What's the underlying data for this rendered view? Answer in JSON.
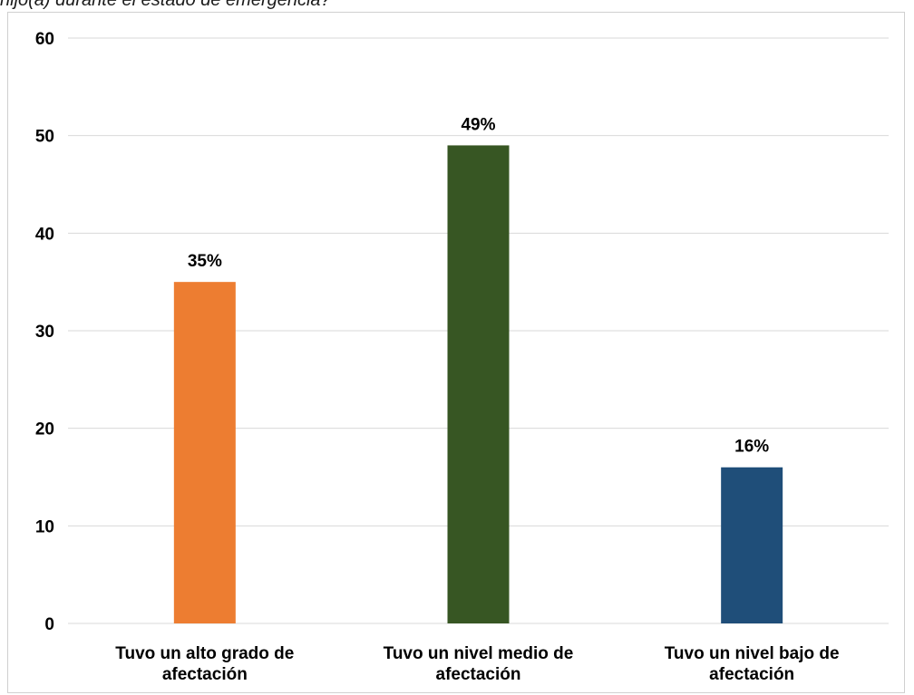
{
  "caption": "hijo(a) durante el estado de emergencia?",
  "chart_data": {
    "type": "bar",
    "categories": [
      [
        "Tuvo un alto grado de",
        "afectación"
      ],
      [
        "Tuvo un nivel medio de",
        "afectación"
      ],
      [
        "Tuvo un nivel bajo de",
        "afectación"
      ]
    ],
    "values": [
      35,
      49,
      16
    ],
    "data_labels": [
      "35%",
      "49%",
      "16%"
    ],
    "colors": [
      "#ED7D31",
      "#375623",
      "#1F4E79"
    ],
    "ylim": [
      0,
      60
    ],
    "yticks": [
      0,
      10,
      20,
      30,
      40,
      50,
      60
    ],
    "grid": true,
    "legend": "none",
    "title": "",
    "xlabel": "",
    "ylabel": ""
  }
}
